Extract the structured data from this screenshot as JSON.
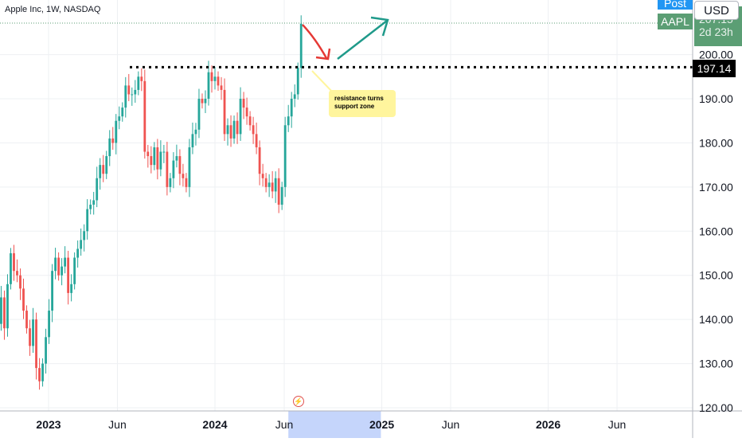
{
  "header": {
    "title": "Apple Inc, 1W, NASDAQ",
    "currency": "USD"
  },
  "price_scale": {
    "post_label": "Post",
    "symbol_label": "AAPL",
    "last_price": "207.15",
    "countdown": "2d 23h",
    "resistance_label": "197.14"
  },
  "annotation": {
    "text_line1": "resistance turns",
    "text_line2": "support zone"
  },
  "colors": {
    "up": "#26a69a",
    "down": "#ef5350",
    "dotted_line": "#000000",
    "arrow_down": "#e53935",
    "arrow_up": "#1f9a8a",
    "highlight": "#c5d5fb",
    "grid": "#eef0f3",
    "axis_text": "#131722"
  },
  "chart_data": {
    "type": "candlestick",
    "title": "Apple Inc, 1W, NASDAQ",
    "x_ticks": [
      {
        "label": "2023",
        "bold": true,
        "date": "2023-01-01"
      },
      {
        "label": "Jun",
        "bold": false,
        "date": "2023-06-01"
      },
      {
        "label": "2024",
        "bold": true,
        "date": "2024-01-01"
      },
      {
        "label": "Jun",
        "bold": false,
        "date": "2024-06-01"
      },
      {
        "label": "2025",
        "bold": true,
        "date": "2025-01-01"
      },
      {
        "label": "Jun",
        "bold": false,
        "date": "2025-06-01"
      },
      {
        "label": "2026",
        "bold": true,
        "date": "2026-01-01"
      },
      {
        "label": "Jun",
        "bold": false,
        "date": "2026-06-01"
      }
    ],
    "y_ticks": [
      "200.00",
      "190.00",
      "180.00",
      "170.00",
      "160.00",
      "150.00",
      "140.00",
      "130.00",
      "120.00"
    ],
    "y_tick_values": [
      200,
      190,
      180,
      170,
      160,
      150,
      140,
      130,
      120
    ],
    "ylim": [
      120,
      207.5
    ],
    "last_price": 207.15,
    "resistance_level": 197.14,
    "first_candle_date": "2022-09-05",
    "weekly_closes": [
      149,
      139,
      145,
      138,
      148,
      155,
      151,
      150,
      147,
      142,
      138,
      134,
      140,
      129,
      126,
      130,
      136,
      142,
      151,
      154,
      150,
      152,
      154,
      146,
      148,
      154,
      156,
      158,
      160,
      165,
      166,
      167,
      172,
      175,
      173,
      177,
      181,
      180,
      185,
      186,
      188,
      193,
      191,
      191,
      192,
      195,
      194,
      178,
      177,
      175,
      179,
      174,
      178,
      178,
      170,
      172,
      176,
      177,
      173,
      172,
      170,
      179,
      182,
      183,
      190,
      189,
      190,
      196,
      194,
      195,
      193,
      192,
      182,
      184,
      181,
      185,
      182,
      190,
      188,
      186,
      184,
      182,
      179,
      173,
      172,
      170,
      171,
      169,
      172,
      166,
      170,
      184,
      186,
      190,
      191,
      197,
      207
    ]
  }
}
